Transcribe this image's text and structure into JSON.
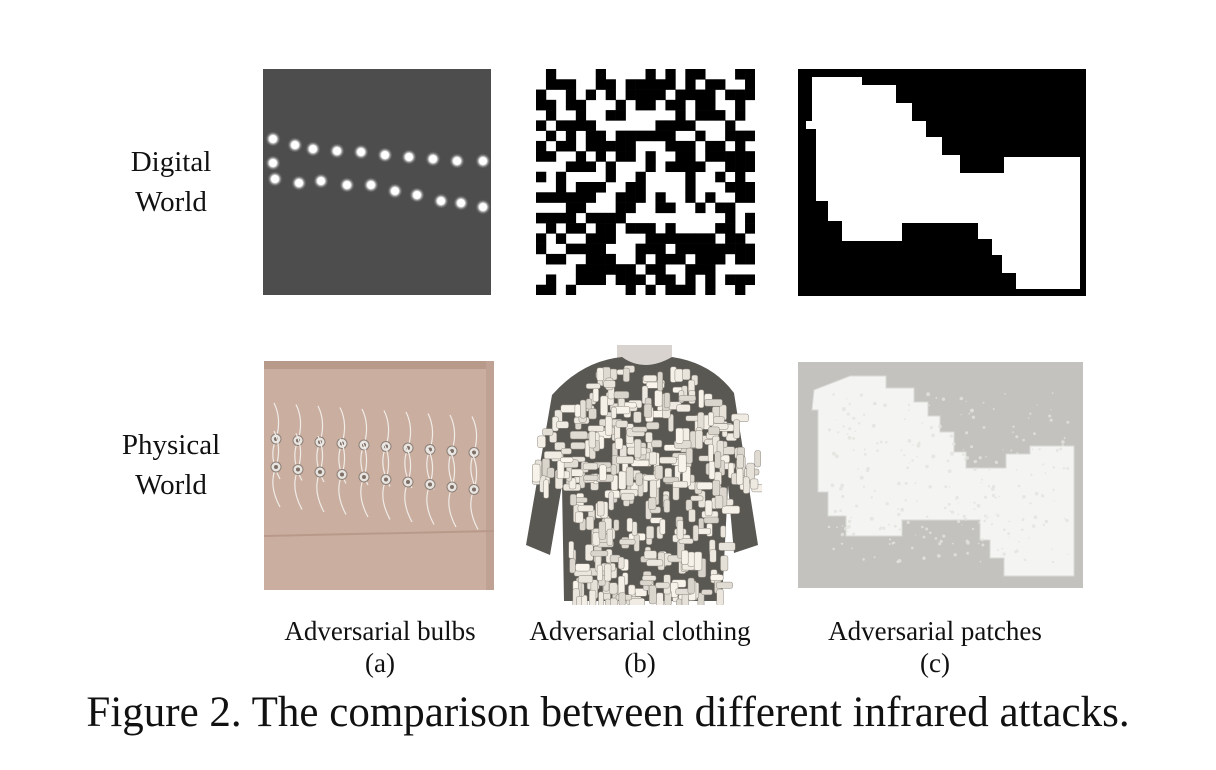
{
  "row_labels": {
    "digital": [
      "Digital",
      "World"
    ],
    "physical": [
      "Physical",
      "World"
    ]
  },
  "columns": [
    {
      "name": "Adversarial bulbs",
      "letter": "(a)"
    },
    {
      "name": "Adversarial clothing",
      "letter": "(b)"
    },
    {
      "name": "Adversarial patches",
      "letter": "(c)"
    }
  ],
  "caption": "Figure 2. The comparison between different infrared attacks."
}
